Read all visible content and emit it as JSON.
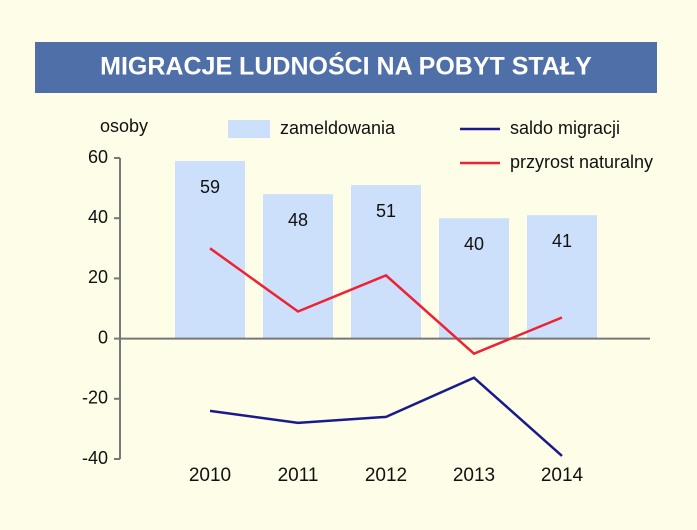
{
  "chart_data": {
    "type": "bar",
    "title": "MIGRACJE LUDNOŚCI NA POBYT STAŁY",
    "y_label": "osoby",
    "categories": [
      "2010",
      "2011",
      "2012",
      "2013",
      "2014"
    ],
    "series": [
      {
        "name": "zameldowania",
        "type": "bar",
        "color": "#cce0fb",
        "values": [
          59,
          48,
          51,
          40,
          41
        ]
      },
      {
        "name": "saldo migracji",
        "type": "line",
        "color": "#1a1a8c",
        "values": [
          -24,
          -28,
          -26,
          -13,
          -39
        ]
      },
      {
        "name": "przyrost naturalny",
        "type": "line",
        "color": "#ee2233",
        "values": [
          30,
          9,
          21,
          -5,
          7
        ]
      }
    ],
    "ylim": [
      -40,
      60
    ],
    "yticks": [
      -40,
      -20,
      0,
      20,
      40,
      60
    ]
  }
}
